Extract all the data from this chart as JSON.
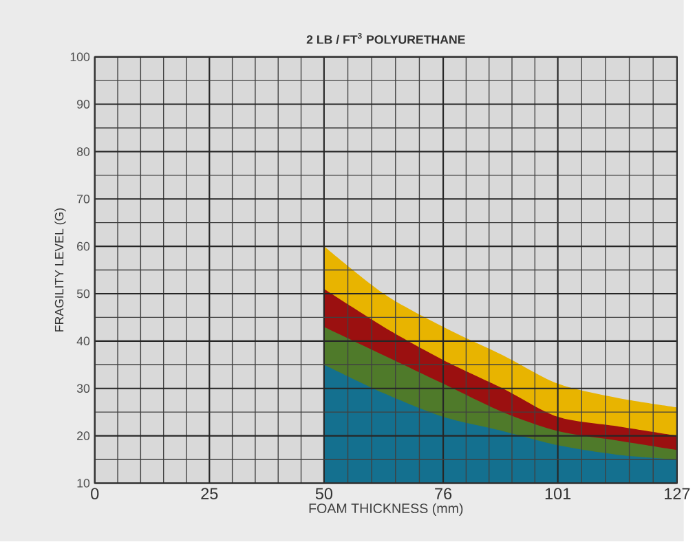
{
  "chart_data": {
    "type": "area",
    "title": "2 LB / FT$^{3}$ POLYURETHANE",
    "xlabel": "FOAM THICKNESS (mm)",
    "ylabel": "FRAGILITY LEVEL (G)",
    "x": [
      50,
      63,
      76,
      89,
      101,
      114,
      127
    ],
    "series": [
      {
        "color": "#e8b400",
        "values": [
          60,
          50,
          43,
          37,
          31,
          28,
          26
        ]
      },
      {
        "color": "#9b1010",
        "values": [
          51,
          43,
          36,
          30,
          24,
          22,
          20
        ]
      },
      {
        "color": "#4f7a2a",
        "values": [
          43,
          37,
          31,
          25,
          21,
          19,
          17
        ]
      },
      {
        "color": "#14708f",
        "values": [
          35,
          29,
          24,
          21,
          18,
          16,
          15
        ]
      }
    ],
    "xlim": [
      0,
      127
    ],
    "ylim": [
      10,
      100
    ],
    "xticks": [
      0,
      25,
      50,
      76,
      101,
      127
    ],
    "yticks": [
      10,
      20,
      30,
      40,
      50,
      60,
      70,
      80,
      90,
      100
    ],
    "grid": true
  }
}
